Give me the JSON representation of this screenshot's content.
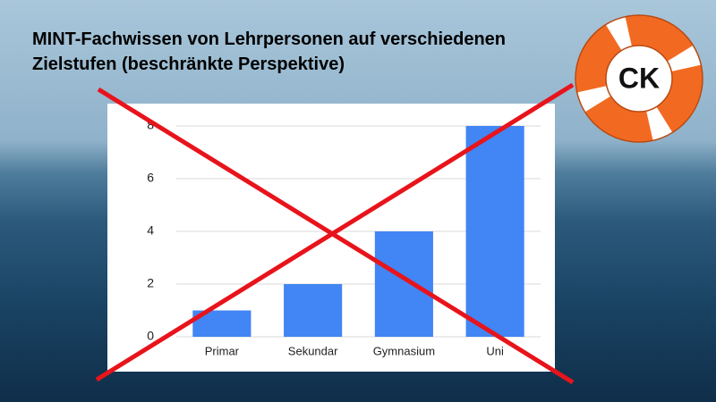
{
  "chart_data": {
    "type": "bar",
    "title": "MINT-Fachwissen von Lehrpersonen auf verschiedenen Zielstufen (beschränkte Perspektive)",
    "categories": [
      "Primar",
      "Sekundar",
      "Gymnasium",
      "Uni"
    ],
    "values": [
      1,
      2,
      4,
      8
    ],
    "color": "#4285f4",
    "ylim": [
      0,
      8
    ],
    "yticks": [
      0,
      2,
      4,
      6,
      8
    ],
    "grid": true
  },
  "badge": "CK"
}
